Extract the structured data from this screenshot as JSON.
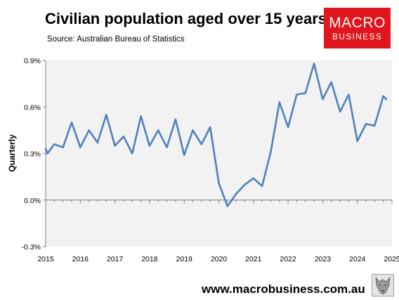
{
  "header": {
    "title": "Civilian population aged over 15 years",
    "source": "Source: Australian Bureau of Statistics"
  },
  "logo": {
    "line1": "MACRO",
    "line2": "BUSINESS",
    "color": "#e1151d"
  },
  "footer": {
    "url": "www.macrobusiness.com.au",
    "mascot": "wolf-icon"
  },
  "chart_data": {
    "type": "line",
    "title": "Civilian population aged over 15 years",
    "xlabel": "",
    "ylabel": "Quarterly",
    "xlim": [
      2015,
      2025
    ],
    "ylim": [
      -0.3,
      0.9
    ],
    "grid": false,
    "legend": "none",
    "line_color": "#4f81bd",
    "plot_background": "#f2f2f2",
    "x_ticks": [
      "2015",
      "2016",
      "2017",
      "2018",
      "2019",
      "2020",
      "2021",
      "2022",
      "2023",
      "2024",
      "2025"
    ],
    "y_ticks": [
      {
        "value": 0.9,
        "label": "0.9%"
      },
      {
        "value": 0.6,
        "label": "0.6%"
      },
      {
        "value": 0.3,
        "label": "0.3%"
      },
      {
        "value": 0.0,
        "label": "0.0%"
      },
      {
        "value": -0.3,
        "label": "-0.3%"
      }
    ],
    "series": [
      {
        "x": [
          2015.0,
          2015.05,
          2015.25,
          2015.5,
          2015.75,
          2016.0,
          2016.25,
          2016.5,
          2016.75,
          2017.0,
          2017.25,
          2017.5,
          2017.75,
          2018.0,
          2018.25,
          2018.5,
          2018.75,
          2019.0,
          2019.25,
          2019.5,
          2019.75,
          2020.0,
          2020.25,
          2020.5,
          2020.75,
          2021.0,
          2021.25,
          2021.5,
          2021.75,
          2022.0,
          2022.25,
          2022.5,
          2022.75,
          2023.0,
          2023.25,
          2023.5,
          2023.75,
          2024.0,
          2024.25,
          2024.5,
          2024.75,
          2024.83
        ],
        "values": [
          0.33,
          0.3,
          0.36,
          0.34,
          0.5,
          0.34,
          0.45,
          0.37,
          0.55,
          0.35,
          0.41,
          0.3,
          0.54,
          0.35,
          0.45,
          0.34,
          0.52,
          0.29,
          0.45,
          0.36,
          0.47,
          0.11,
          -0.04,
          0.04,
          0.1,
          0.14,
          0.09,
          0.31,
          0.63,
          0.47,
          0.68,
          0.69,
          0.88,
          0.65,
          0.76,
          0.57,
          0.68,
          0.38,
          0.49,
          0.48,
          0.67,
          0.65
        ]
      }
    ]
  }
}
